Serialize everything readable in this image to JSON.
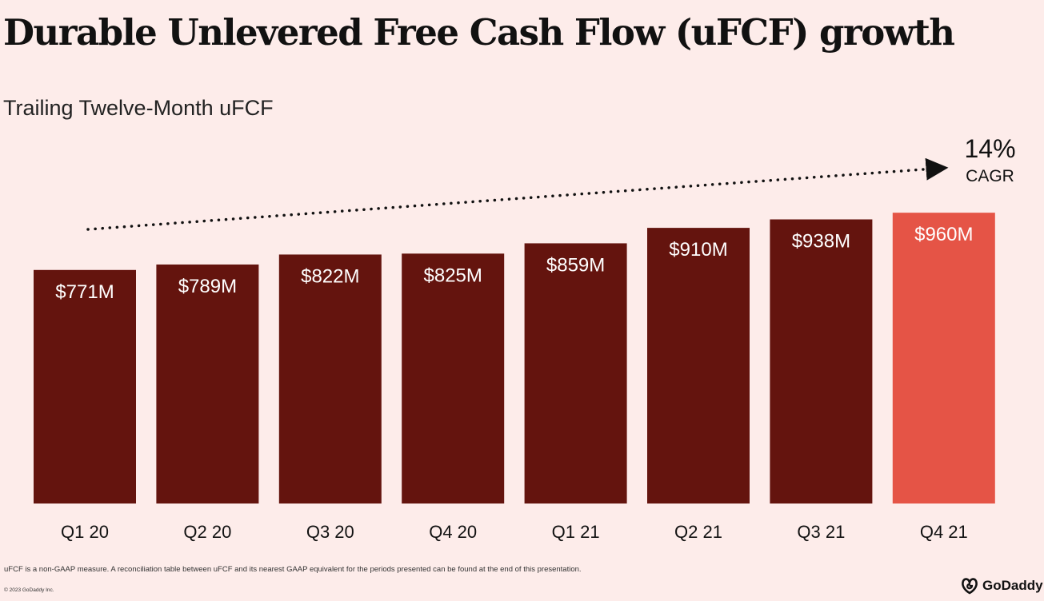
{
  "header": {
    "title": "Durable Unlevered Free Cash Flow (uFCF) growth",
    "subtitle": "Trailing Twelve-Month uFCF"
  },
  "annotation": {
    "value": "14%",
    "label": "CAGR"
  },
  "footer": {
    "footnote": "uFCF is a non-GAAP measure.  A reconciliation table between uFCF and its nearest GAAP equivalent for the periods presented can be found at the end of this presentation.",
    "copyright": "© 2023 GoDaddy Inc.",
    "logo_text": "GoDaddy"
  },
  "colors": {
    "background": "#fdecea",
    "bar": "#64140e",
    "highlight_bar": "#e55446",
    "bar_label": "#ffffff"
  },
  "chart_data": {
    "type": "bar",
    "title": "Durable Unlevered Free Cash Flow (uFCF) growth",
    "subtitle": "Trailing Twelve-Month uFCF",
    "categories": [
      "Q1 20",
      "Q2 20",
      "Q3 20",
      "Q4 20",
      "Q1 21",
      "Q2 21",
      "Q3 21",
      "Q4 21"
    ],
    "values": [
      771,
      789,
      822,
      825,
      859,
      910,
      938,
      960
    ],
    "data_labels": [
      "$771M",
      "$789M",
      "$822M",
      "$825M",
      "$859M",
      "$910M",
      "$938M",
      "$960M"
    ],
    "highlight_index": 7,
    "unit": "$M",
    "xlabel": "",
    "ylabel": "",
    "grid": false,
    "legend": "none"
  }
}
